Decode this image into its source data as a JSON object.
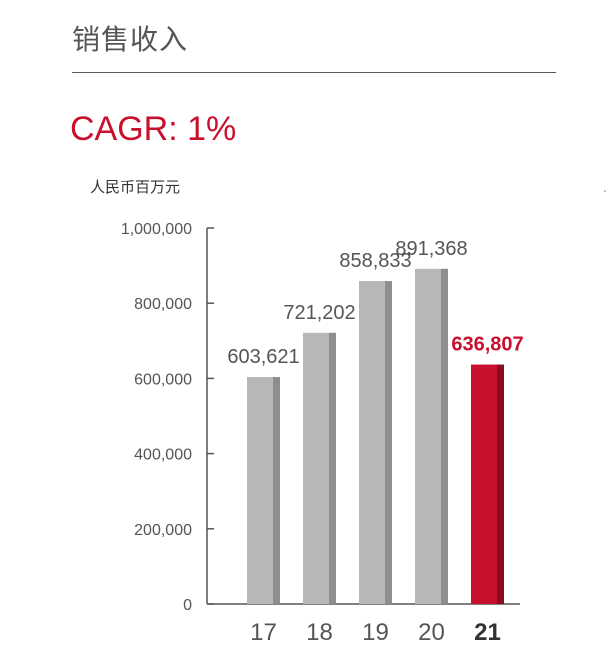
{
  "header": {
    "title": "销售收入",
    "cagr_label": "CAGR: 1%",
    "unit_label": "人民币百万元"
  },
  "colors": {
    "bar": "#b7b7b9",
    "bar_shade": "#8e8e90",
    "highlight": "#c8102e",
    "highlight_shade": "#8c0b1e",
    "axis": "#555555",
    "text": "#555555"
  },
  "chart_data": {
    "type": "bar",
    "categories": [
      "17",
      "18",
      "19",
      "20",
      "21"
    ],
    "values": [
      603621,
      721202,
      858833,
      891368,
      636807
    ],
    "value_labels": [
      "603,621",
      "721,202",
      "858,833",
      "891,368",
      "636,807"
    ],
    "highlight_index": 4,
    "ylim": [
      0,
      1000000
    ],
    "yticks": [
      0,
      200000,
      400000,
      600000,
      800000,
      1000000
    ],
    "ytick_labels": [
      "0",
      "200,000",
      "400,000",
      "600,000",
      "800,000",
      "1,000,000"
    ],
    "ylabel": "人民币百万元",
    "xlabel": "",
    "grid": false,
    "legend": "none"
  }
}
